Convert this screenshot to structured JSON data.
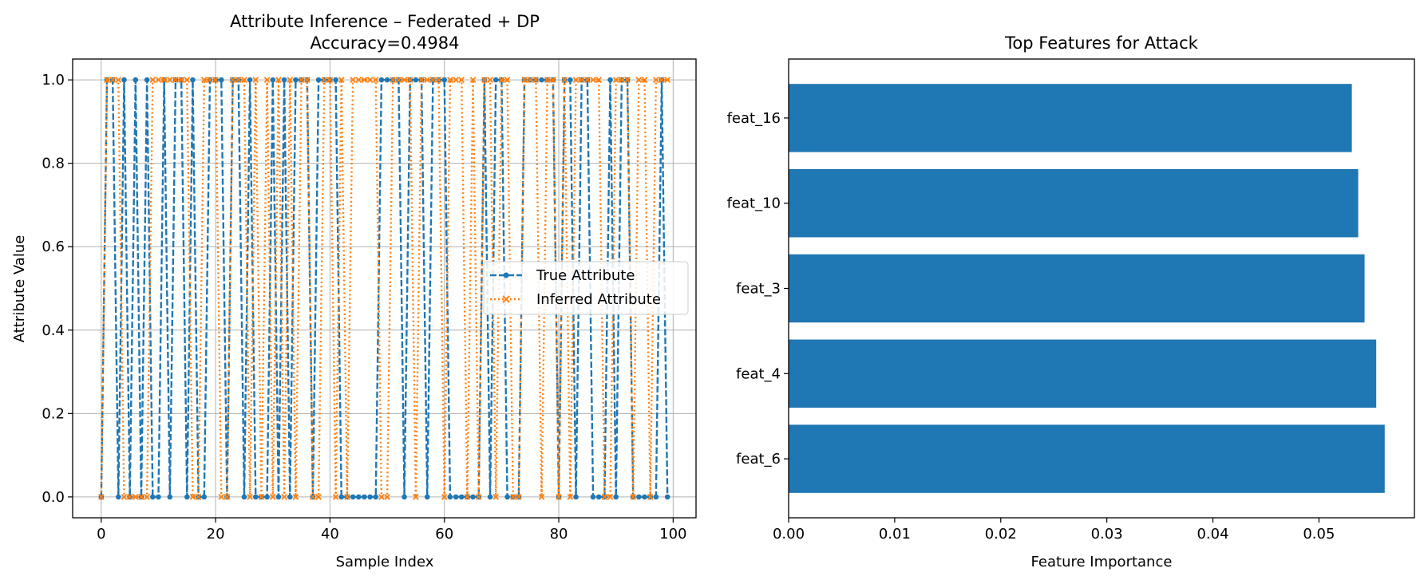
{
  "chart_data": [
    {
      "type": "line",
      "title_line1": "Attribute Inference – Federated + DP",
      "title_line2": "Accuracy=0.4984",
      "xlabel": "Sample Index",
      "ylabel": "Attribute Value",
      "xlim": [
        -5,
        104
      ],
      "ylim": [
        -0.05,
        1.05
      ],
      "xticks": [
        0,
        20,
        40,
        60,
        80,
        100
      ],
      "xtick_labels": [
        "0",
        "20",
        "40",
        "60",
        "80",
        "100"
      ],
      "yticks": [
        0.0,
        0.2,
        0.4,
        0.6,
        0.8,
        1.0
      ],
      "ytick_labels": [
        "0.0",
        "0.2",
        "0.4",
        "0.6",
        "0.8",
        "1.0"
      ],
      "grid": true,
      "legend_position": "center-right",
      "series": [
        {
          "name": "True Attribute",
          "color": "#1f77b4",
          "marker": "dot",
          "linestyle": "dashed",
          "x": [
            0,
            1,
            2,
            3,
            4,
            5,
            6,
            7,
            8,
            9,
            10,
            11,
            12,
            13,
            14,
            15,
            16,
            17,
            18,
            19,
            20,
            21,
            22,
            23,
            24,
            25,
            26,
            27,
            28,
            29,
            30,
            31,
            32,
            33,
            34,
            35,
            36,
            37,
            38,
            39,
            40,
            41,
            42,
            43,
            44,
            45,
            46,
            47,
            48,
            49,
            50,
            51,
            52,
            53,
            54,
            55,
            56,
            57,
            58,
            59,
            60,
            61,
            62,
            63,
            64,
            65,
            66,
            67,
            68,
            69,
            70,
            71,
            72,
            73,
            74,
            75,
            76,
            77,
            78,
            79,
            80,
            81,
            82,
            83,
            84,
            85,
            86,
            87,
            88,
            89,
            90,
            91,
            92,
            93,
            94,
            95,
            96,
            97,
            98,
            99
          ],
          "values": [
            0,
            1,
            1,
            0,
            1,
            0,
            1,
            0,
            1,
            0,
            0,
            1,
            0,
            1,
            1,
            0,
            1,
            0,
            0,
            1,
            1,
            1,
            0,
            1,
            1,
            0,
            1,
            0,
            0,
            0,
            1,
            0,
            1,
            0,
            1,
            1,
            1,
            0,
            1,
            1,
            1,
            1,
            0,
            0,
            0,
            0,
            0,
            0,
            0,
            1,
            1,
            1,
            1,
            0,
            1,
            1,
            1,
            0,
            1,
            1,
            1,
            0,
            0,
            0,
            0,
            0,
            0,
            1,
            0,
            1,
            1,
            0,
            0,
            0,
            1,
            1,
            1,
            1,
            1,
            1,
            0,
            1,
            1,
            0,
            1,
            1,
            0,
            0,
            0,
            1,
            0,
            1,
            1,
            0,
            0,
            0,
            0,
            0,
            1,
            0
          ]
        },
        {
          "name": "Inferred Attribute",
          "color": "#ff7f0e",
          "marker": "x",
          "linestyle": "dotted",
          "x": [
            0,
            1,
            2,
            3,
            4,
            5,
            6,
            7,
            8,
            9,
            10,
            11,
            12,
            13,
            14,
            15,
            16,
            17,
            18,
            19,
            20,
            21,
            22,
            23,
            24,
            25,
            26,
            27,
            28,
            29,
            30,
            31,
            32,
            33,
            34,
            35,
            36,
            37,
            38,
            39,
            40,
            41,
            42,
            43,
            44,
            45,
            46,
            47,
            48,
            49,
            50,
            51,
            52,
            53,
            54,
            55,
            56,
            57,
            58,
            59,
            60,
            61,
            62,
            63,
            64,
            65,
            66,
            67,
            68,
            69,
            70,
            71,
            72,
            73,
            74,
            75,
            76,
            77,
            78,
            79,
            80,
            81,
            82,
            83,
            84,
            85,
            86,
            87,
            88,
            89,
            90,
            91,
            92,
            93,
            94,
            95,
            96,
            97,
            98,
            99
          ],
          "values": [
            0,
            1,
            1,
            1,
            0,
            0,
            0,
            0,
            0,
            1,
            1,
            1,
            1,
            1,
            1,
            1,
            0,
            0,
            1,
            1,
            1,
            0,
            0,
            1,
            1,
            1,
            0,
            1,
            0,
            1,
            0,
            1,
            0,
            1,
            0,
            1,
            1,
            0,
            0,
            1,
            1,
            0,
            1,
            0,
            1,
            1,
            1,
            1,
            1,
            0,
            0,
            1,
            1,
            1,
            1,
            0,
            1,
            1,
            1,
            1,
            0,
            1,
            1,
            1,
            0,
            1,
            0,
            1,
            1,
            0,
            1,
            1,
            0,
            0,
            1,
            1,
            1,
            0,
            1,
            1,
            0,
            1,
            0,
            1,
            1,
            1,
            1,
            1,
            0,
            0,
            1,
            1,
            1,
            0,
            1,
            1,
            0,
            1,
            1,
            1
          ]
        }
      ]
    },
    {
      "type": "bar",
      "orientation": "horizontal",
      "title": "Top Features for Attack",
      "xlabel": "Feature Importance",
      "ylabel": "",
      "categories": [
        "feat_6",
        "feat_4",
        "feat_3",
        "feat_10",
        "feat_16"
      ],
      "values": [
        0.0562,
        0.0554,
        0.0543,
        0.0537,
        0.0531
      ],
      "color": "#1f77b4",
      "xlim": [
        0,
        0.059
      ],
      "xticks": [
        0.0,
        0.01,
        0.02,
        0.03,
        0.04,
        0.05
      ],
      "xtick_labels": [
        "0.00",
        "0.01",
        "0.02",
        "0.03",
        "0.04",
        "0.05"
      ]
    }
  ]
}
